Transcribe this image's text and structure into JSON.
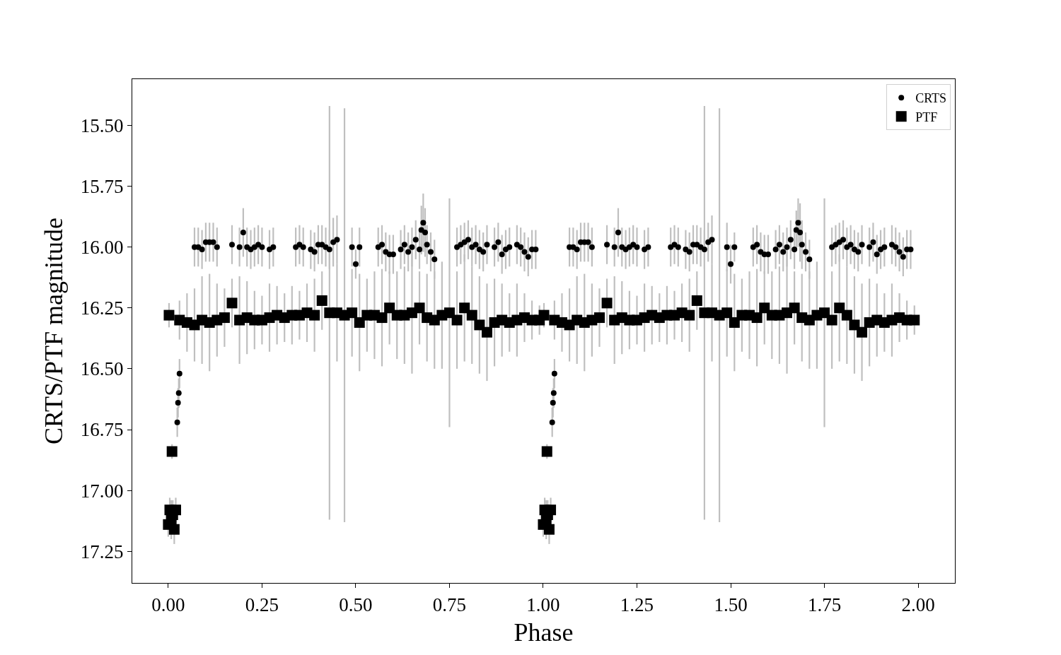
{
  "chart_data": {
    "type": "scatter",
    "xlabel": "Phase",
    "ylabel": "CRTS/PTF magnitude",
    "xlim": [
      -0.096,
      2.098
    ],
    "ylim": [
      17.38,
      15.31
    ],
    "xticks": [
      {
        "value": 0,
        "label": "0.00"
      },
      {
        "value": 0.25,
        "label": "0.25"
      },
      {
        "value": 0.5,
        "label": "0.50"
      },
      {
        "value": 0.75,
        "label": "0.75"
      },
      {
        "value": 1,
        "label": "1.00"
      },
      {
        "value": 1.25,
        "label": "1.25"
      },
      {
        "value": 1.5,
        "label": "1.50"
      },
      {
        "value": 1.75,
        "label": "1.75"
      },
      {
        "value": 2,
        "label": "2.00"
      }
    ],
    "yticks": [
      {
        "value": 15.5,
        "label": "15.50"
      },
      {
        "value": 15.75,
        "label": "15.75"
      },
      {
        "value": 16,
        "label": "16.00"
      },
      {
        "value": 16.25,
        "label": "16.25"
      },
      {
        "value": 16.5,
        "label": "16.50"
      },
      {
        "value": 16.75,
        "label": "16.75"
      },
      {
        "value": 17,
        "label": "17.00"
      },
      {
        "value": 17.25,
        "label": "17.25"
      }
    ],
    "grid": false,
    "legend": "top right",
    "series": [
      {
        "name": "PTF",
        "color": "#000000",
        "marker": "square",
        "x": [
          0.0,
          0.002,
          0.004,
          0.008,
          0.01,
          0.012,
          0.016,
          0.02,
          0.03,
          0.05,
          0.07,
          0.09,
          0.11,
          0.13,
          0.15,
          0.17,
          0.19,
          0.21,
          0.23,
          0.25,
          0.27,
          0.29,
          0.31,
          0.33,
          0.35,
          0.37,
          0.39,
          0.41,
          0.43,
          0.45,
          0.47,
          0.49,
          0.51,
          0.53,
          0.55,
          0.57,
          0.59,
          0.61,
          0.63,
          0.65,
          0.67,
          0.69,
          0.71,
          0.73,
          0.75,
          0.77,
          0.79,
          0.81,
          0.83,
          0.85,
          0.87,
          0.89,
          0.91,
          0.93,
          0.95,
          0.97,
          0.99,
          1.0,
          1.002,
          1.004,
          1.008,
          1.01,
          1.012,
          1.016,
          1.02,
          1.03,
          1.05,
          1.07,
          1.09,
          1.11,
          1.13,
          1.15,
          1.17,
          1.19,
          1.21,
          1.23,
          1.25,
          1.27,
          1.29,
          1.31,
          1.33,
          1.35,
          1.37,
          1.39,
          1.41,
          1.43,
          1.45,
          1.47,
          1.49,
          1.51,
          1.53,
          1.55,
          1.57,
          1.59,
          1.61,
          1.63,
          1.65,
          1.67,
          1.69,
          1.71,
          1.73,
          1.75,
          1.77,
          1.79,
          1.81,
          1.83,
          1.85,
          1.87,
          1.89,
          1.91,
          1.93,
          1.95,
          1.97,
          1.99
        ],
        "values": [
          17.14,
          16.28,
          17.08,
          17.12,
          16.84,
          17.1,
          17.16,
          17.08,
          16.3,
          16.31,
          16.32,
          16.3,
          16.31,
          16.3,
          16.29,
          16.23,
          16.3,
          16.29,
          16.3,
          16.3,
          16.29,
          16.28,
          16.29,
          16.28,
          16.28,
          16.27,
          16.28,
          16.22,
          16.27,
          16.27,
          16.28,
          16.27,
          16.31,
          16.28,
          16.28,
          16.29,
          16.25,
          16.28,
          16.28,
          16.27,
          16.25,
          16.29,
          16.3,
          16.28,
          16.27,
          16.3,
          16.25,
          16.28,
          16.32,
          16.35,
          16.31,
          16.3,
          16.31,
          16.3,
          16.29,
          16.3,
          16.3,
          17.14,
          16.28,
          17.08,
          17.12,
          16.84,
          17.1,
          17.16,
          17.08,
          16.3,
          16.31,
          16.32,
          16.3,
          16.31,
          16.3,
          16.29,
          16.23,
          16.3,
          16.29,
          16.3,
          16.3,
          16.29,
          16.28,
          16.29,
          16.28,
          16.28,
          16.27,
          16.28,
          16.22,
          16.27,
          16.27,
          16.28,
          16.27,
          16.31,
          16.28,
          16.28,
          16.29,
          16.25,
          16.28,
          16.28,
          16.27,
          16.25,
          16.29,
          16.3,
          16.28,
          16.27,
          16.3,
          16.25,
          16.28,
          16.32,
          16.35,
          16.31,
          16.3,
          16.31,
          16.3,
          16.29,
          16.3,
          16.3
        ],
        "errors": [
          0.05,
          0.05,
          0.05,
          0.08,
          0.03,
          0.06,
          0.06,
          0.05,
          0.08,
          0.12,
          0.15,
          0.18,
          0.2,
          0.15,
          0.12,
          0.1,
          0.18,
          0.15,
          0.12,
          0.1,
          0.14,
          0.12,
          0.1,
          0.12,
          0.1,
          0.12,
          0.15,
          0.12,
          0.85,
          0.2,
          0.85,
          0.18,
          0.2,
          0.15,
          0.18,
          0.2,
          0.15,
          0.18,
          0.2,
          0.25,
          0.15,
          0.18,
          0.2,
          0.22,
          0.47,
          0.2,
          0.22,
          0.2,
          0.2,
          0.2,
          0.18,
          0.15,
          0.12,
          0.15,
          0.1,
          0.08,
          0.06,
          0.05,
          0.05,
          0.05,
          0.08,
          0.03,
          0.06,
          0.06,
          0.05,
          0.08,
          0.12,
          0.15,
          0.18,
          0.2,
          0.15,
          0.12,
          0.1,
          0.18,
          0.15,
          0.12,
          0.1,
          0.14,
          0.12,
          0.1,
          0.12,
          0.1,
          0.12,
          0.15,
          0.12,
          0.85,
          0.2,
          0.85,
          0.18,
          0.2,
          0.15,
          0.18,
          0.2,
          0.15,
          0.18,
          0.2,
          0.25,
          0.15,
          0.18,
          0.2,
          0.22,
          0.47,
          0.2,
          0.22,
          0.2,
          0.2,
          0.2,
          0.18,
          0.15,
          0.12,
          0.15,
          0.1,
          0.08,
          0.06
        ]
      },
      {
        "name": "CRTS",
        "color": "#000000",
        "marker": "circle",
        "x": [
          0.024,
          0.026,
          0.028,
          0.03,
          0.07,
          0.08,
          0.09,
          0.1,
          0.11,
          0.12,
          0.13,
          0.17,
          0.19,
          0.2,
          0.21,
          0.22,
          0.23,
          0.24,
          0.25,
          0.27,
          0.28,
          0.34,
          0.35,
          0.36,
          0.38,
          0.39,
          0.4,
          0.41,
          0.42,
          0.43,
          0.44,
          0.45,
          0.49,
          0.5,
          0.51,
          0.56,
          0.57,
          0.58,
          0.59,
          0.6,
          0.62,
          0.63,
          0.64,
          0.65,
          0.66,
          0.67,
          0.675,
          0.68,
          0.685,
          0.69,
          0.7,
          0.71,
          0.77,
          0.78,
          0.79,
          0.8,
          0.81,
          0.82,
          0.83,
          0.84,
          0.85,
          0.87,
          0.88,
          0.89,
          0.9,
          0.91,
          0.93,
          0.94,
          0.95,
          0.96,
          0.97,
          0.98,
          1.024,
          1.026,
          1.028,
          1.03,
          1.07,
          1.08,
          1.09,
          1.1,
          1.11,
          1.12,
          1.13,
          1.17,
          1.19,
          1.2,
          1.21,
          1.22,
          1.23,
          1.24,
          1.25,
          1.27,
          1.28,
          1.34,
          1.35,
          1.36,
          1.38,
          1.39,
          1.4,
          1.41,
          1.42,
          1.43,
          1.44,
          1.45,
          1.49,
          1.5,
          1.51,
          1.56,
          1.57,
          1.58,
          1.59,
          1.6,
          1.62,
          1.63,
          1.64,
          1.65,
          1.66,
          1.67,
          1.675,
          1.68,
          1.685,
          1.69,
          1.7,
          1.71,
          1.77,
          1.78,
          1.79,
          1.8,
          1.81,
          1.82,
          1.83,
          1.84,
          1.85,
          1.87,
          1.88,
          1.89,
          1.9,
          1.91,
          1.93,
          1.94,
          1.95,
          1.96,
          1.97,
          1.98
        ],
        "values": [
          16.72,
          16.64,
          16.6,
          16.52,
          16.0,
          16.0,
          16.01,
          15.98,
          15.98,
          15.98,
          16.0,
          15.99,
          16.0,
          15.94,
          16.0,
          16.01,
          16.0,
          15.99,
          16.0,
          16.01,
          16.0,
          16.0,
          15.99,
          16.0,
          16.01,
          16.02,
          15.99,
          15.99,
          16.0,
          16.01,
          15.98,
          15.97,
          16.0,
          16.07,
          16.0,
          16.0,
          15.99,
          16.02,
          16.03,
          16.03,
          16.01,
          15.99,
          16.02,
          16.0,
          15.97,
          16.01,
          15.93,
          15.9,
          15.94,
          15.99,
          16.02,
          16.05,
          16.0,
          15.99,
          15.98,
          15.97,
          16.0,
          15.99,
          16.01,
          16.02,
          15.99,
          16.0,
          15.98,
          16.03,
          16.01,
          16.0,
          15.99,
          16.0,
          16.02,
          16.04,
          16.01,
          16.01,
          16.72,
          16.64,
          16.6,
          16.52,
          16.0,
          16.0,
          16.01,
          15.98,
          15.98,
          15.98,
          16.0,
          15.99,
          16.0,
          15.94,
          16.0,
          16.01,
          16.0,
          15.99,
          16.0,
          16.01,
          16.0,
          16.0,
          15.99,
          16.0,
          16.01,
          16.02,
          15.99,
          15.99,
          16.0,
          16.01,
          15.98,
          15.97,
          16.0,
          16.07,
          16.0,
          16.0,
          15.99,
          16.02,
          16.03,
          16.03,
          16.01,
          15.99,
          16.02,
          16.0,
          15.97,
          16.01,
          15.93,
          15.9,
          15.94,
          15.99,
          16.02,
          16.05,
          16.0,
          15.99,
          15.98,
          15.97,
          16.0,
          15.99,
          16.01,
          16.02,
          15.99,
          16.0,
          15.98,
          16.03,
          16.01,
          16.0,
          15.99,
          16.0,
          16.02,
          16.04,
          16.01,
          16.01
        ],
        "errors": [
          0.06,
          0.06,
          0.06,
          0.06,
          0.08,
          0.08,
          0.08,
          0.08,
          0.08,
          0.08,
          0.08,
          0.08,
          0.08,
          0.1,
          0.08,
          0.08,
          0.08,
          0.08,
          0.08,
          0.08,
          0.08,
          0.08,
          0.08,
          0.08,
          0.08,
          0.08,
          0.08,
          0.08,
          0.08,
          0.08,
          0.1,
          0.1,
          0.08,
          0.06,
          0.08,
          0.08,
          0.08,
          0.08,
          0.08,
          0.08,
          0.08,
          0.08,
          0.08,
          0.08,
          0.08,
          0.08,
          0.1,
          0.12,
          0.1,
          0.08,
          0.08,
          0.08,
          0.08,
          0.08,
          0.08,
          0.08,
          0.08,
          0.08,
          0.08,
          0.08,
          0.08,
          0.08,
          0.08,
          0.08,
          0.08,
          0.08,
          0.08,
          0.08,
          0.08,
          0.08,
          0.08,
          0.08,
          0.06,
          0.06,
          0.06,
          0.06,
          0.08,
          0.08,
          0.08,
          0.08,
          0.08,
          0.08,
          0.08,
          0.08,
          0.08,
          0.1,
          0.08,
          0.08,
          0.08,
          0.08,
          0.08,
          0.08,
          0.08,
          0.08,
          0.08,
          0.08,
          0.08,
          0.08,
          0.08,
          0.08,
          0.08,
          0.08,
          0.08,
          0.1,
          0.1,
          0.08,
          0.06,
          0.08,
          0.08,
          0.08,
          0.08,
          0.08,
          0.08,
          0.08,
          0.08,
          0.08,
          0.08,
          0.08,
          0.08,
          0.1,
          0.12,
          0.1,
          0.08,
          0.08,
          0.08,
          0.08,
          0.08,
          0.08,
          0.08,
          0.08,
          0.08,
          0.08,
          0.08,
          0.08,
          0.08,
          0.08,
          0.08,
          0.08,
          0.08,
          0.08,
          0.08,
          0.08,
          0.08,
          0.08
        ]
      }
    ]
  }
}
